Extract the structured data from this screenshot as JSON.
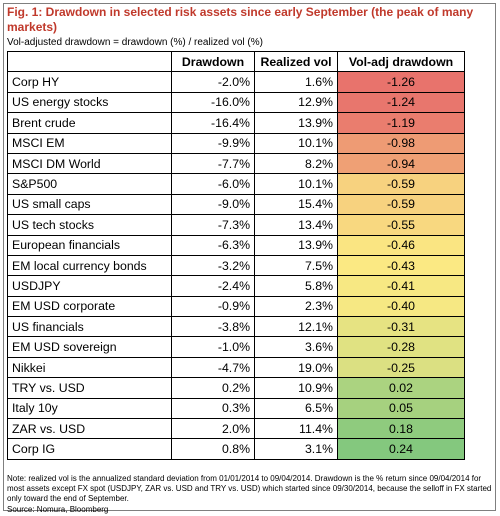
{
  "figure": {
    "title": "Fig. 1: Drawdown in selected risk assets since early September (the peak of many markets)",
    "subtitle": "Vol-adjusted drawdown = drawdown (%) / realized vol (%)",
    "note": "Note: realized vol is the annualized standard deviation from 01/01/2014 to 09/04/2014. Drawdown is the % return since 09/04/2014 for most assets except FX spot (USDJPY, ZAR vs. USD and TRY vs. USD) which started since 09/30/2014, because the selloff in FX started only toward the end of September.",
    "source": "Source: Nomura, Bloomberg"
  },
  "chart_data": {
    "type": "table",
    "columns": [
      "",
      "Drawdown",
      "Realized vol",
      "Vol-adj drawdown"
    ],
    "rows": [
      {
        "asset": "Corp HY",
        "drawdown": "-2.0%",
        "vol": "1.6%",
        "voladj": "-1.26",
        "v": -1.26
      },
      {
        "asset": "US energy stocks",
        "drawdown": "-16.0%",
        "vol": "12.9%",
        "voladj": "-1.24",
        "v": -1.24
      },
      {
        "asset": "Brent crude",
        "drawdown": "-16.4%",
        "vol": "13.9%",
        "voladj": "-1.19",
        "v": -1.19
      },
      {
        "asset": "MSCI EM",
        "drawdown": "-9.9%",
        "vol": "10.1%",
        "voladj": "-0.98",
        "v": -0.98
      },
      {
        "asset": "MSCI DM World",
        "drawdown": "-7.7%",
        "vol": "8.2%",
        "voladj": "-0.94",
        "v": -0.94
      },
      {
        "asset": "S&P500",
        "drawdown": "-6.0%",
        "vol": "10.1%",
        "voladj": "-0.59",
        "v": -0.59
      },
      {
        "asset": "US small caps",
        "drawdown": "-9.0%",
        "vol": "15.4%",
        "voladj": "-0.59",
        "v": -0.59
      },
      {
        "asset": "US tech stocks",
        "drawdown": "-7.3%",
        "vol": "13.4%",
        "voladj": "-0.55",
        "v": -0.55
      },
      {
        "asset": "European financials",
        "drawdown": "-6.3%",
        "vol": "13.9%",
        "voladj": "-0.46",
        "v": -0.46
      },
      {
        "asset": "EM local currency bonds",
        "drawdown": "-3.2%",
        "vol": "7.5%",
        "voladj": "-0.43",
        "v": -0.43
      },
      {
        "asset": "USDJPY",
        "drawdown": "-2.4%",
        "vol": "5.8%",
        "voladj": "-0.41",
        "v": -0.41
      },
      {
        "asset": "EM USD corporate",
        "drawdown": "-0.9%",
        "vol": "2.3%",
        "voladj": "-0.40",
        "v": -0.4
      },
      {
        "asset": "US financials",
        "drawdown": "-3.8%",
        "vol": "12.1%",
        "voladj": "-0.31",
        "v": -0.31
      },
      {
        "asset": "EM USD sovereign",
        "drawdown": "-1.0%",
        "vol": "3.6%",
        "voladj": "-0.28",
        "v": -0.28
      },
      {
        "asset": "Nikkei",
        "drawdown": "-4.7%",
        "vol": "19.0%",
        "voladj": "-0.25",
        "v": -0.25
      },
      {
        "asset": "TRY vs. USD",
        "drawdown": "0.2%",
        "vol": "10.9%",
        "voladj": "0.02",
        "v": 0.02
      },
      {
        "asset": "Italy 10y",
        "drawdown": "0.3%",
        "vol": "6.5%",
        "voladj": "0.05",
        "v": 0.05
      },
      {
        "asset": "ZAR vs. USD",
        "drawdown": "2.0%",
        "vol": "11.4%",
        "voladj": "0.18",
        "v": 0.18
      },
      {
        "asset": "Corp IG",
        "drawdown": "0.8%",
        "vol": "3.1%",
        "voladj": "0.24",
        "v": 0.24
      }
    ],
    "color_scale": {
      "low": "#e8736c",
      "mid": "#fbe983",
      "high": "#84c87e"
    }
  }
}
